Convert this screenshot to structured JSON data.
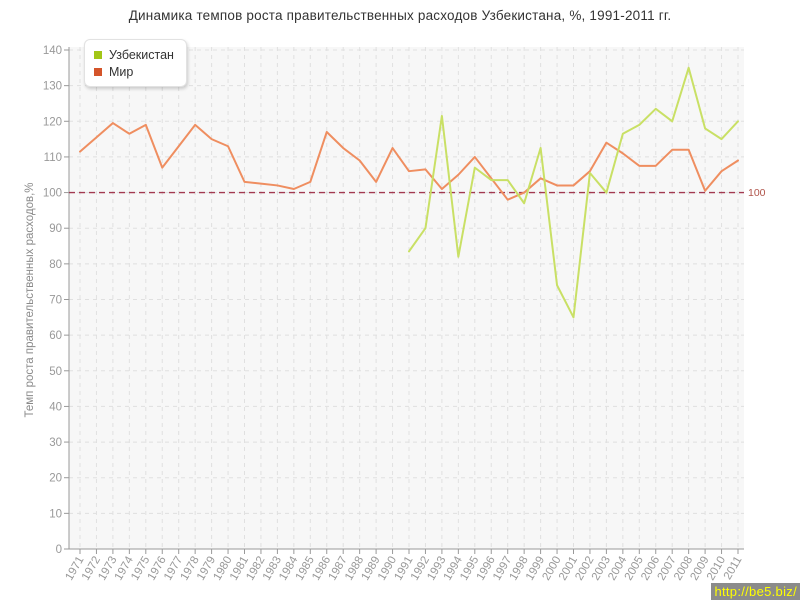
{
  "title": "Динамика темпов роста правительственных расходов Узбекистана, %, 1991-2011 гг.",
  "watermark": {
    "text": "http://be5.biz/"
  },
  "legend": {
    "items": [
      {
        "label": "Узбекистан",
        "marker_color": "#a2c617"
      },
      {
        "label": "Мир",
        "marker_color": "#d4542a"
      }
    ]
  },
  "reference_line": {
    "value": 100,
    "label": "100"
  },
  "colors": {
    "plot_bg": "#f7f7f7",
    "grid": "#e0e0e0",
    "axis": "#999999",
    "tick_text": "#999999",
    "title_text": "#333333",
    "reference_line": "#a23950",
    "reference_label": "#b0544a",
    "uzbekistan_line": "#c9e065",
    "world_line": "#ef8e60"
  },
  "chart_data": {
    "type": "line",
    "title": "Динамика темпов роста правительственных расходов Узбекистана, %, 1991-2011 гг.",
    "xlabel": "",
    "ylabel": "Темп роста правительственных расходов,%",
    "x": [
      "1971",
      "1972",
      "1973",
      "1974",
      "1975",
      "1976",
      "1977",
      "1978",
      "1979",
      "1980",
      "1981",
      "1982",
      "1983",
      "1984",
      "1985",
      "1986",
      "1987",
      "1988",
      "1989",
      "1990",
      "1991",
      "1992",
      "1993",
      "1994",
      "1995",
      "1996",
      "1997",
      "1998",
      "1999",
      "2000",
      "2001",
      "2002",
      "2003",
      "2004",
      "2005",
      "2006",
      "2007",
      "2008",
      "2009",
      "2010",
      "2011"
    ],
    "ylim": [
      0,
      140
    ],
    "yticks": [
      0,
      10,
      20,
      30,
      40,
      50,
      60,
      70,
      80,
      90,
      100,
      110,
      120,
      130,
      140
    ],
    "grid": true,
    "legend_position": "top-left",
    "reference_line": 100,
    "series": [
      {
        "name": "Узбекистан",
        "color": "#c9e065",
        "start_year": "1991",
        "values": [
          83.5,
          90,
          121.5,
          82,
          107,
          103.5,
          103.5,
          97,
          112.5,
          74,
          65,
          105.5,
          100,
          116.5,
          119,
          123.5,
          120,
          135,
          118,
          115,
          120
        ]
      },
      {
        "name": "Мир",
        "color": "#ef8e60",
        "start_year": "1971",
        "values": [
          111.5,
          115.5,
          119.5,
          116.5,
          119,
          107,
          113,
          119,
          115,
          113,
          103,
          102.5,
          102,
          101,
          103,
          117,
          112.5,
          109,
          103,
          112.5,
          106,
          106.5,
          101,
          105,
          110,
          104,
          98,
          100,
          104,
          102,
          102,
          106,
          114,
          111,
          107.5,
          107.5,
          112,
          112,
          100.5,
          106,
          109
        ]
      }
    ]
  }
}
